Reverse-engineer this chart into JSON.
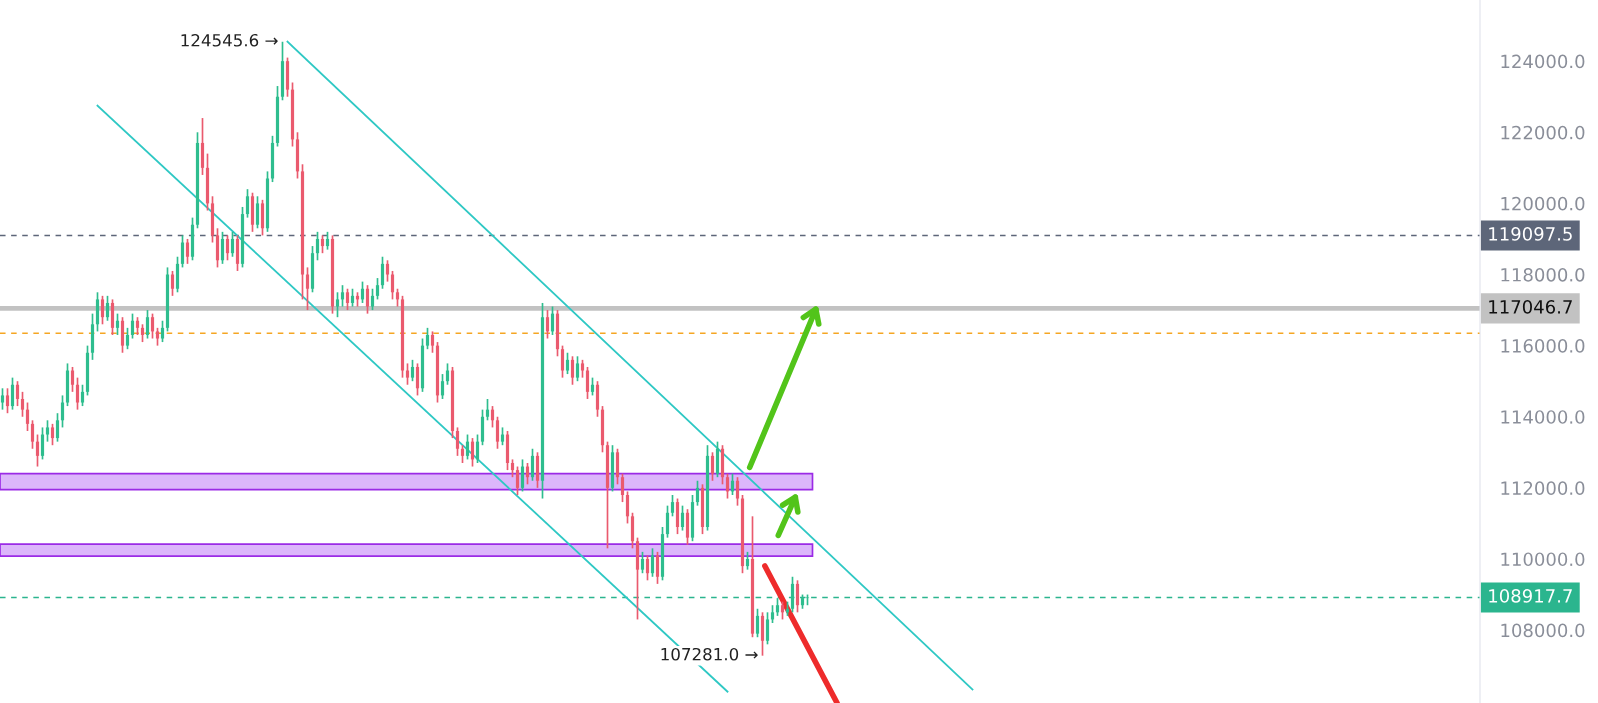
{
  "chart_data": {
    "type": "candlestick",
    "categories": [
      null,
      null,
      null,
      null,
      null,
      null,
      null,
      null,
      null,
      null,
      null,
      null,
      null,
      null,
      null,
      null,
      null,
      null,
      null,
      null,
      null,
      null,
      null,
      null,
      null,
      null,
      null,
      null,
      null,
      null,
      null,
      null,
      null,
      null,
      null,
      null,
      null,
      null,
      null,
      null,
      null,
      null,
      null,
      null,
      null,
      null,
      null,
      null,
      null,
      null,
      null,
      null,
      null,
      null,
      null,
      null,
      null,
      null,
      null,
      null,
      null,
      null,
      null,
      null,
      null,
      null,
      null,
      null,
      null,
      null,
      null,
      null,
      null,
      null,
      null,
      null,
      null,
      null,
      null,
      null,
      null,
      null,
      null,
      null,
      null,
      null,
      null,
      null,
      null,
      null,
      null,
      null,
      null,
      null,
      null,
      null,
      null,
      null,
      null,
      null,
      null,
      null,
      null,
      null,
      null,
      null,
      null,
      null,
      null,
      null,
      null,
      null,
      null,
      null,
      null,
      null,
      null,
      null,
      null,
      null,
      null,
      null,
      null,
      null,
      null,
      null,
      null,
      null,
      null,
      null,
      null,
      null,
      null,
      null,
      null,
      null,
      null,
      null,
      null,
      null,
      null,
      null,
      null,
      null,
      null,
      null,
      null,
      null,
      null,
      null,
      null,
      null,
      null,
      null,
      null,
      null,
      null,
      null,
      null,
      null,
      null,
      null,
      null,
      null,
      null,
      null,
      null,
      null,
      null,
      null,
      null,
      null,
      null,
      null,
      null,
      null,
      null,
      null,
      null,
      null,
      null,
      null,
      null,
      null,
      null,
      null,
      null,
      null,
      null,
      null,
      null,
      null,
      null,
      null,
      null,
      null,
      null,
      null,
      null,
      null,
      null,
      null,
      null,
      null,
      null,
      null,
      null,
      null,
      null,
      null,
      null,
      null,
      null,
      null,
      null,
      null,
      null,
      null,
      null,
      null,
      null,
      null,
      null,
      null,
      null,
      null,
      null,
      null,
      null,
      null,
      null,
      null,
      null,
      null,
      null,
      null,
      null,
      null,
      null,
      null,
      null,
      null,
      null,
      null,
      null,
      null,
      null,
      null,
      null,
      null,
      null,
      null,
      null,
      null,
      null,
      null,
      null,
      null,
      null,
      null,
      null,
      null,
      null,
      null,
      null,
      null,
      null,
      null,
      null,
      null,
      null,
      null,
      null,
      null,
      null,
      null,
      null,
      null,
      null,
      null,
      null,
      null,
      null,
      null,
      null,
      null,
      null,
      null,
      null,
      null,
      null,
      null,
      null,
      null,
      null,
      null
    ],
    "ohlc": [
      [
        114400,
        114800,
        114200,
        114600
      ],
      [
        114600,
        114800,
        114100,
        114300
      ],
      [
        114300,
        115100,
        114200,
        114900
      ],
      [
        114900,
        115000,
        114300,
        114500
      ],
      [
        114500,
        114700,
        114000,
        114200
      ],
      [
        114200,
        114400,
        113600,
        113800
      ],
      [
        113800,
        113900,
        113100,
        113300
      ],
      [
        113300,
        113500,
        112600,
        112900
      ],
      [
        112900,
        113700,
        112800,
        113500
      ],
      [
        113500,
        113900,
        113300,
        113700
      ],
      [
        113700,
        113800,
        113200,
        113400
      ],
      [
        113400,
        114100,
        113300,
        113900
      ],
      [
        113900,
        114600,
        113700,
        114400
      ],
      [
        114400,
        115500,
        114300,
        115300
      ],
      [
        115300,
        115400,
        114700,
        114900
      ],
      [
        114900,
        115100,
        114200,
        114400
      ],
      [
        114400,
        114900,
        114300,
        114700
      ],
      [
        114700,
        116000,
        114600,
        115800
      ],
      [
        115800,
        116900,
        115600,
        116600
      ],
      [
        116600,
        117500,
        116400,
        117300
      ],
      [
        117300,
        117400,
        116600,
        116800
      ],
      [
        116800,
        117400,
        116700,
        117200
      ],
      [
        117200,
        117300,
        116300,
        116500
      ],
      [
        116500,
        116900,
        116300,
        116700
      ],
      [
        116700,
        116800,
        115800,
        116000
      ],
      [
        116000,
        116500,
        115900,
        116300
      ],
      [
        116300,
        116900,
        116200,
        116700
      ],
      [
        116700,
        116800,
        116300,
        116500
      ],
      [
        116500,
        116600,
        116100,
        116300
      ],
      [
        116300,
        117000,
        116200,
        116800
      ],
      [
        116800,
        116900,
        116200,
        116400
      ],
      [
        116400,
        116500,
        116000,
        116200
      ],
      [
        116200,
        116700,
        116100,
        116500
      ],
      [
        116500,
        118200,
        116400,
        118000
      ],
      [
        118000,
        118100,
        117400,
        117600
      ],
      [
        117600,
        118500,
        117500,
        118300
      ],
      [
        118300,
        119100,
        118200,
        118900
      ],
      [
        118900,
        119000,
        118300,
        118500
      ],
      [
        118500,
        119600,
        118400,
        119400
      ],
      [
        119400,
        122000,
        119300,
        121700
      ],
      [
        121700,
        122400,
        120800,
        121000
      ],
      [
        121000,
        121400,
        119800,
        120000
      ],
      [
        120000,
        120200,
        118900,
        119100
      ],
      [
        119100,
        119300,
        118200,
        118400
      ],
      [
        118400,
        119200,
        118300,
        119000
      ],
      [
        119000,
        119100,
        118400,
        118600
      ],
      [
        118600,
        119200,
        118500,
        119000
      ],
      [
        119000,
        119100,
        118100,
        118300
      ],
      [
        118300,
        119900,
        118200,
        119700
      ],
      [
        119700,
        120400,
        119600,
        120200
      ],
      [
        120200,
        120300,
        119200,
        119400
      ],
      [
        119400,
        120200,
        119300,
        120000
      ],
      [
        120000,
        120100,
        119100,
        119300
      ],
      [
        119300,
        120900,
        119200,
        120700
      ],
      [
        120700,
        121900,
        120600,
        121700
      ],
      [
        121700,
        123300,
        121600,
        123000
      ],
      [
        123000,
        124545.6,
        122900,
        124000
      ],
      [
        124000,
        124100,
        123000,
        123200
      ],
      [
        123200,
        123400,
        121600,
        121800
      ],
      [
        121800,
        122000,
        120700,
        120900
      ],
      [
        120900,
        121100,
        117300,
        118000
      ],
      [
        118000,
        118200,
        117000,
        117600
      ],
      [
        117600,
        118800,
        117500,
        118600
      ],
      [
        118600,
        119200,
        118400,
        119000
      ],
      [
        119000,
        119100,
        118600,
        118800
      ],
      [
        118800,
        119200,
        118700,
        119000
      ],
      [
        119000,
        119100,
        116900,
        117100
      ],
      [
        117100,
        117500,
        116800,
        117300
      ],
      [
        117300,
        117700,
        117100,
        117500
      ],
      [
        117500,
        117600,
        117000,
        117200
      ],
      [
        117200,
        117600,
        117100,
        117400
      ],
      [
        117400,
        117500,
        117100,
        117300
      ],
      [
        117300,
        117800,
        117200,
        117600
      ],
      [
        117600,
        117700,
        116900,
        117100
      ],
      [
        117100,
        117600,
        117000,
        117400
      ],
      [
        117400,
        117900,
        117300,
        117700
      ],
      [
        117700,
        118500,
        117600,
        118300
      ],
      [
        118300,
        118400,
        117800,
        118000
      ],
      [
        118000,
        118100,
        117300,
        117500
      ],
      [
        117500,
        117600,
        117100,
        117300
      ],
      [
        117300,
        117400,
        115100,
        115300
      ],
      [
        115300,
        115500,
        114900,
        115100
      ],
      [
        115100,
        115600,
        115000,
        115400
      ],
      [
        115400,
        115500,
        114600,
        114800
      ],
      [
        114800,
        116200,
        114700,
        116000
      ],
      [
        116000,
        116500,
        115900,
        116300
      ],
      [
        116300,
        116400,
        115800,
        116000
      ],
      [
        116000,
        116100,
        114400,
        114600
      ],
      [
        114600,
        115200,
        114500,
        115000
      ],
      [
        115000,
        115500,
        114900,
        115300
      ],
      [
        115300,
        115400,
        113400,
        113600
      ],
      [
        113600,
        113700,
        112900,
        113100
      ],
      [
        113100,
        113200,
        112700,
        112900
      ],
      [
        112900,
        113500,
        112800,
        113300
      ],
      [
        113300,
        113400,
        112600,
        112800
      ],
      [
        112800,
        113500,
        112700,
        113300
      ],
      [
        113300,
        114200,
        113200,
        114000
      ],
      [
        114000,
        114500,
        113900,
        114200
      ],
      [
        114200,
        114300,
        113700,
        113900
      ],
      [
        113900,
        114000,
        113100,
        113300
      ],
      [
        113300,
        113700,
        113200,
        113500
      ],
      [
        113500,
        113600,
        112500,
        112700
      ],
      [
        112700,
        112800,
        112300,
        112500
      ],
      [
        112500,
        112600,
        111800,
        112000
      ],
      [
        112000,
        112800,
        111900,
        112600
      ],
      [
        112600,
        112700,
        112100,
        112300
      ],
      [
        112300,
        113100,
        112200,
        112900
      ],
      [
        112900,
        113000,
        112000,
        112200
      ],
      [
        112200,
        117200,
        111700,
        116800
      ],
      [
        116800,
        117000,
        116200,
        116400
      ],
      [
        116400,
        117100,
        116300,
        116900
      ],
      [
        116900,
        117000,
        115700,
        115900
      ],
      [
        115900,
        116000,
        115100,
        115300
      ],
      [
        115300,
        115800,
        115200,
        115600
      ],
      [
        115600,
        115700,
        114900,
        115100
      ],
      [
        115100,
        115700,
        115000,
        115500
      ],
      [
        115500,
        115600,
        115100,
        115300
      ],
      [
        115300,
        115400,
        114500,
        114700
      ],
      [
        114700,
        115100,
        114600,
        114900
      ],
      [
        114900,
        115000,
        114000,
        114200
      ],
      [
        114200,
        114300,
        113000,
        113200
      ],
      [
        113200,
        113300,
        110300,
        112000
      ],
      [
        112000,
        113200,
        111900,
        113000
      ],
      [
        113000,
        113100,
        112100,
        112300
      ],
      [
        112300,
        112400,
        111600,
        111800
      ],
      [
        111800,
        111900,
        111000,
        111200
      ],
      [
        111200,
        111300,
        110300,
        110500
      ],
      [
        110500,
        110600,
        108300,
        109700
      ],
      [
        109700,
        110200,
        109600,
        110000
      ],
      [
        110000,
        110100,
        109400,
        109600
      ],
      [
        109600,
        110300,
        109500,
        110100
      ],
      [
        110100,
        110200,
        109300,
        109500
      ],
      [
        109500,
        110900,
        109400,
        110700
      ],
      [
        110700,
        111500,
        110600,
        111300
      ],
      [
        111300,
        111800,
        111200,
        111600
      ],
      [
        111600,
        111700,
        110700,
        110900
      ],
      [
        110900,
        111500,
        110800,
        111300
      ],
      [
        111300,
        111400,
        110400,
        110600
      ],
      [
        110600,
        111800,
        110500,
        111600
      ],
      [
        111600,
        112200,
        111500,
        112000
      ],
      [
        112000,
        112100,
        110700,
        110900
      ],
      [
        110900,
        113200,
        110800,
        112900
      ],
      [
        112900,
        113000,
        112200,
        112400
      ],
      [
        112400,
        113300,
        112300,
        113100
      ],
      [
        113100,
        113200,
        112100,
        112300
      ],
      [
        112300,
        112400,
        111700,
        111900
      ],
      [
        111900,
        112400,
        111800,
        112200
      ],
      [
        112200,
        112300,
        111500,
        111700
      ],
      [
        111700,
        111800,
        109600,
        109800
      ],
      [
        109800,
        110200,
        109700,
        110000
      ],
      [
        110000,
        111200,
        107800,
        107900
      ],
      [
        107900,
        108600,
        107800,
        108400
      ],
      [
        108400,
        108500,
        107281.0,
        107700
      ],
      [
        107700,
        108500,
        107600,
        108300
      ],
      [
        108300,
        108700,
        108200,
        108500
      ],
      [
        108500,
        108900,
        108400,
        108700
      ],
      [
        108700,
        108800,
        108300,
        108500
      ],
      [
        108500,
        108800,
        108400,
        108600
      ],
      [
        108600,
        109500,
        108500,
        109300
      ],
      [
        109300,
        109400,
        108500,
        108700
      ],
      [
        108700,
        109000,
        108600,
        108900
      ],
      [
        108900,
        109000,
        108700,
        108917.7
      ],
      null,
      null,
      null,
      null,
      null,
      null,
      null,
      null,
      null,
      null,
      null,
      null,
      null,
      null,
      null,
      null,
      null,
      null,
      null,
      null,
      null,
      null,
      null,
      null,
      null,
      null,
      null,
      null,
      null,
      null,
      null,
      null,
      null,
      null,
      null,
      null,
      null,
      null,
      null,
      null,
      null,
      null,
      null,
      null,
      null,
      null,
      null,
      null,
      null,
      null,
      null,
      null,
      null,
      null,
      null,
      null,
      null,
      null,
      null,
      null,
      null,
      null,
      null,
      null,
      null,
      null,
      null,
      null,
      null,
      null,
      null,
      null,
      null,
      null,
      null,
      null,
      null,
      null,
      null,
      null,
      null,
      null,
      null,
      null,
      null,
      null,
      null,
      null,
      null,
      null,
      null,
      null,
      null,
      null,
      null,
      null,
      null,
      null,
      null,
      null,
      null,
      null,
      null,
      null,
      null,
      null,
      null,
      null,
      null,
      null,
      null,
      null,
      null,
      null,
      null,
      null,
      null,
      null,
      null,
      null,
      null,
      null,
      null,
      null,
      null,
      null,
      null,
      null,
      null,
      null,
      null,
      null,
      null,
      null
    ],
    "series": [
      {
        "type": "line",
        "color": "#2ec8c4",
        "values": [
          null,
          null,
          null,
          null,
          null,
          null,
          null,
          null,
          null,
          null,
          null,
          null,
          null,
          null,
          null,
          null,
          null,
          null,
          null,
          null,
          null,
          null,
          null,
          null,
          null,
          null,
          null,
          null,
          null,
          null,
          null,
          null,
          null,
          null,
          null,
          null,
          null,
          null,
          null,
          null,
          null,
          null,
          null,
          null,
          null,
          null,
          null,
          null,
          null,
          null,
          null,
          null,
          null,
          null,
          null,
          null,
          null,
          124550,
          null,
          null,
          null,
          null,
          null,
          null,
          null,
          null,
          null,
          null,
          null,
          null,
          null,
          null,
          null,
          null,
          null,
          null,
          null,
          null,
          null,
          null,
          null,
          null,
          null,
          null,
          null,
          null,
          null,
          null,
          null,
          null,
          null,
          null,
          null,
          null,
          null,
          null,
          null,
          null,
          null,
          null,
          null,
          null,
          null,
          null,
          null,
          null,
          null,
          null,
          null,
          null,
          null,
          null,
          null,
          null,
          null,
          null,
          null,
          null,
          null,
          null,
          null,
          null,
          null,
          null,
          null,
          null,
          null,
          null,
          null,
          null,
          null,
          null,
          null,
          null,
          null,
          null,
          null,
          null,
          null,
          null,
          null,
          null,
          null,
          null,
          null,
          null,
          null,
          null,
          null,
          null,
          null,
          null,
          null,
          null,
          null,
          null,
          null,
          null,
          null,
          null,
          null,
          null,
          null,
          null,
          null,
          null,
          null,
          null,
          null,
          null,
          null,
          null,
          null,
          null,
          null,
          null,
          null,
          null,
          null,
          null,
          null,
          null,
          null,
          null,
          null,
          null,
          null,
          null,
          null,
          null,
          null,
          null,
          null,
          null,
          106330,
          null,
          null,
          null,
          null,
          null,
          null,
          null,
          null,
          null,
          null,
          null,
          null,
          null,
          null,
          null,
          null,
          null,
          null,
          null,
          null,
          null,
          null,
          null,
          null,
          null,
          null,
          null,
          null,
          null,
          null,
          null,
          null,
          null,
          null,
          null,
          null,
          null,
          null,
          null,
          null,
          null,
          null,
          null,
          null,
          null,
          null,
          null,
          null,
          null,
          null,
          null,
          null,
          null,
          null,
          null,
          null,
          null,
          null,
          null,
          null,
          null,
          null,
          null,
          null,
          null,
          null,
          null,
          null,
          null,
          null,
          null,
          null,
          null,
          null,
          null,
          null,
          null,
          null,
          null,
          null,
          null,
          null,
          null,
          null,
          null,
          null,
          null,
          null,
          null,
          null,
          null,
          null,
          null,
          null,
          null,
          null,
          null,
          null,
          null,
          null,
          null
        ]
      },
      {
        "type": "line",
        "color": "#2ec8c4",
        "values": [
          null,
          null,
          null,
          null,
          null,
          null,
          null,
          null,
          null,
          null,
          null,
          null,
          null,
          null,
          null,
          null,
          null,
          null,
          null,
          122750,
          null,
          null,
          null,
          null,
          null,
          null,
          null,
          null,
          null,
          null,
          null,
          null,
          null,
          null,
          null,
          null,
          null,
          null,
          null,
          null,
          null,
          null,
          null,
          null,
          null,
          null,
          null,
          null,
          null,
          null,
          null,
          null,
          null,
          null,
          null,
          null,
          null,
          null,
          null,
          null,
          null,
          null,
          null,
          null,
          null,
          null,
          null,
          null,
          null,
          null,
          null,
          null,
          null,
          null,
          null,
          null,
          null,
          null,
          null,
          null,
          null,
          null,
          null,
          null,
          null,
          null,
          null,
          null,
          null,
          null,
          null,
          null,
          null,
          null,
          null,
          null,
          null,
          null,
          null,
          null,
          null,
          null,
          null,
          null,
          null,
          null,
          null,
          null,
          null,
          null,
          null,
          null,
          null,
          null,
          null,
          null,
          null,
          null,
          null,
          null,
          null,
          null,
          null,
          null,
          null,
          null,
          null,
          null,
          null,
          null,
          null,
          null,
          null,
          null,
          null,
          null,
          null,
          null,
          null,
          null,
          null,
          null,
          null,
          null,
          null,
          106270,
          null,
          null,
          null,
          null,
          null,
          null,
          null,
          null,
          null,
          null,
          null,
          null,
          null,
          null,
          null,
          null,
          null,
          null,
          null,
          null,
          null,
          null,
          null,
          null,
          null,
          null,
          null,
          null,
          null,
          null,
          null,
          null,
          null,
          null,
          null,
          null,
          null,
          null,
          null,
          null,
          null,
          null,
          null,
          null,
          null,
          null,
          null,
          null,
          null,
          null,
          null,
          null,
          null,
          null,
          null,
          null,
          null,
          null,
          null,
          null,
          null,
          null,
          null,
          null,
          null,
          null,
          null,
          null,
          null,
          null,
          null,
          null,
          null,
          null,
          null,
          null,
          null,
          null,
          null,
          null,
          null,
          null,
          null,
          null,
          null,
          null,
          null,
          null,
          null,
          null,
          null,
          null,
          null,
          null,
          null,
          null,
          null,
          null,
          null,
          null,
          null,
          null,
          null,
          null,
          null,
          null,
          null,
          null,
          null,
          null,
          null,
          null,
          null,
          null,
          null,
          null,
          null,
          null,
          null,
          null,
          null,
          null,
          null,
          null,
          null,
          null,
          null,
          null,
          null,
          null,
          null,
          null,
          null,
          null,
          null,
          null,
          null,
          null,
          null,
          null,
          null,
          null,
          null,
          null,
          null,
          null,
          null,
          null,
          null,
          null
        ]
      }
    ],
    "ylim": [
      105950,
      125720
    ],
    "yticks": [
      {
        "value": 108000,
        "label": "108000.0"
      },
      {
        "value": 110000,
        "label": "110000.0"
      },
      {
        "value": 112000,
        "label": "112000.0"
      },
      {
        "value": 114000,
        "label": "114000.0"
      },
      {
        "value": 116000,
        "label": "116000.0"
      },
      {
        "value": 118000,
        "label": "118000.0"
      },
      {
        "value": 120000,
        "label": "120000.0"
      },
      {
        "value": 122000,
        "label": "122000.0"
      },
      {
        "value": 124000,
        "label": "124000.0"
      }
    ],
    "tick_labels": "y",
    "ref_lines": [
      {
        "axis": "y",
        "value": 119097.5,
        "label": "119097.5",
        "color": "#5d6679",
        "line_style": "dashed"
      },
      {
        "axis": "y",
        "value": 117046.7,
        "label": "117046.7",
        "color": "#c2c2c2",
        "line_style": "solid"
      },
      {
        "axis": "y",
        "value": 116350,
        "color": "#f5a623",
        "line_style": "dashed"
      },
      {
        "axis": "y",
        "value": 108917.7,
        "label": "108917.7",
        "color": "#2bb58e",
        "line_style": "dashed"
      }
    ],
    "bands": [
      {
        "axis": "y",
        "from": 111950,
        "to": 112400,
        "color": "#dcb6fb"
      },
      {
        "axis": "y",
        "from": 110080,
        "to": 110420,
        "color": "#dcb6fb"
      }
    ],
    "annotations": [
      "124545.6 →",
      "107281.0 →"
    ],
    "grid": false,
    "legend": false
  }
}
